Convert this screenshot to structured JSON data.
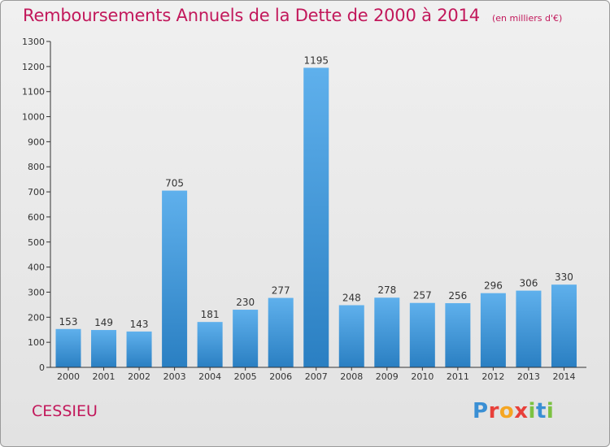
{
  "header": {
    "title": "Remboursements Annuels de la Dette de 2000 à 2014",
    "unit": "(en milliers d'€)"
  },
  "footer": {
    "city": "CESSIEU",
    "logo": "Proxiti"
  },
  "colors": {
    "title": "#c2185b",
    "bar_top": "#5fb0ec",
    "bar_bottom": "#2a7fc2",
    "axis": "#333333"
  },
  "chart_data": {
    "type": "bar",
    "title": "Remboursements Annuels de la Dette de 2000 à 2014",
    "subtitle": "(en milliers d'€)",
    "categories": [
      "2000",
      "2001",
      "2002",
      "2003",
      "2004",
      "2005",
      "2006",
      "2007",
      "2008",
      "2009",
      "2010",
      "2011",
      "2012",
      "2013",
      "2014"
    ],
    "values": [
      153,
      149,
      143,
      705,
      181,
      230,
      277,
      1195,
      248,
      278,
      257,
      256,
      296,
      306,
      330
    ],
    "ylim": [
      0,
      1300
    ],
    "yticks": [
      0,
      100,
      200,
      300,
      400,
      500,
      600,
      700,
      800,
      900,
      1000,
      1100,
      1200,
      1300
    ],
    "grid": false,
    "legend": "none"
  }
}
